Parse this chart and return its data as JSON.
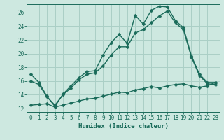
{
  "xlabel": "Humidex (Indice chaleur)",
  "background_color": "#cde8e0",
  "grid_color": "#aacfc6",
  "line_color": "#1a6b5a",
  "xlim": [
    -0.5,
    23.5
  ],
  "ylim": [
    11.5,
    27.2
  ],
  "xticks": [
    0,
    1,
    2,
    3,
    4,
    5,
    6,
    7,
    8,
    9,
    10,
    11,
    12,
    13,
    14,
    15,
    16,
    17,
    18,
    19,
    20,
    21,
    22,
    23
  ],
  "yticks": [
    12,
    14,
    16,
    18,
    20,
    22,
    24,
    26
  ],
  "line1_x": [
    0,
    1,
    2,
    3,
    4,
    5,
    6,
    7,
    8,
    9,
    10,
    11,
    12,
    13,
    14,
    15,
    16,
    17,
    18,
    19,
    20,
    21,
    22,
    23
  ],
  "line1_y": [
    17.0,
    15.8,
    13.8,
    12.3,
    14.1,
    15.3,
    16.5,
    17.4,
    17.5,
    19.8,
    21.6,
    22.8,
    21.5,
    25.6,
    24.3,
    26.3,
    26.9,
    26.8,
    24.8,
    23.8,
    19.7,
    17.0,
    15.8,
    15.8
  ],
  "line2_x": [
    0,
    1,
    2,
    3,
    4,
    5,
    6,
    7,
    8,
    9,
    10,
    11,
    12,
    13,
    14,
    15,
    16,
    17,
    18,
    19,
    20,
    21,
    22,
    23
  ],
  "line2_y": [
    16.0,
    15.5,
    13.7,
    12.5,
    14.0,
    15.0,
    16.2,
    17.0,
    17.2,
    18.2,
    19.8,
    21.0,
    21.0,
    23.0,
    23.5,
    24.5,
    25.5,
    26.2,
    24.5,
    23.5,
    19.5,
    16.8,
    15.6,
    15.5
  ],
  "line3_x": [
    0,
    1,
    2,
    3,
    4,
    5,
    6,
    7,
    8,
    9,
    10,
    11,
    12,
    13,
    14,
    15,
    16,
    17,
    18,
    19,
    20,
    21,
    22,
    23
  ],
  "line3_y": [
    12.5,
    12.6,
    12.7,
    12.2,
    12.5,
    12.8,
    13.1,
    13.4,
    13.5,
    13.8,
    14.1,
    14.4,
    14.3,
    14.7,
    14.9,
    15.2,
    15.0,
    15.3,
    15.5,
    15.6,
    15.3,
    15.1,
    15.3,
    15.8
  ]
}
